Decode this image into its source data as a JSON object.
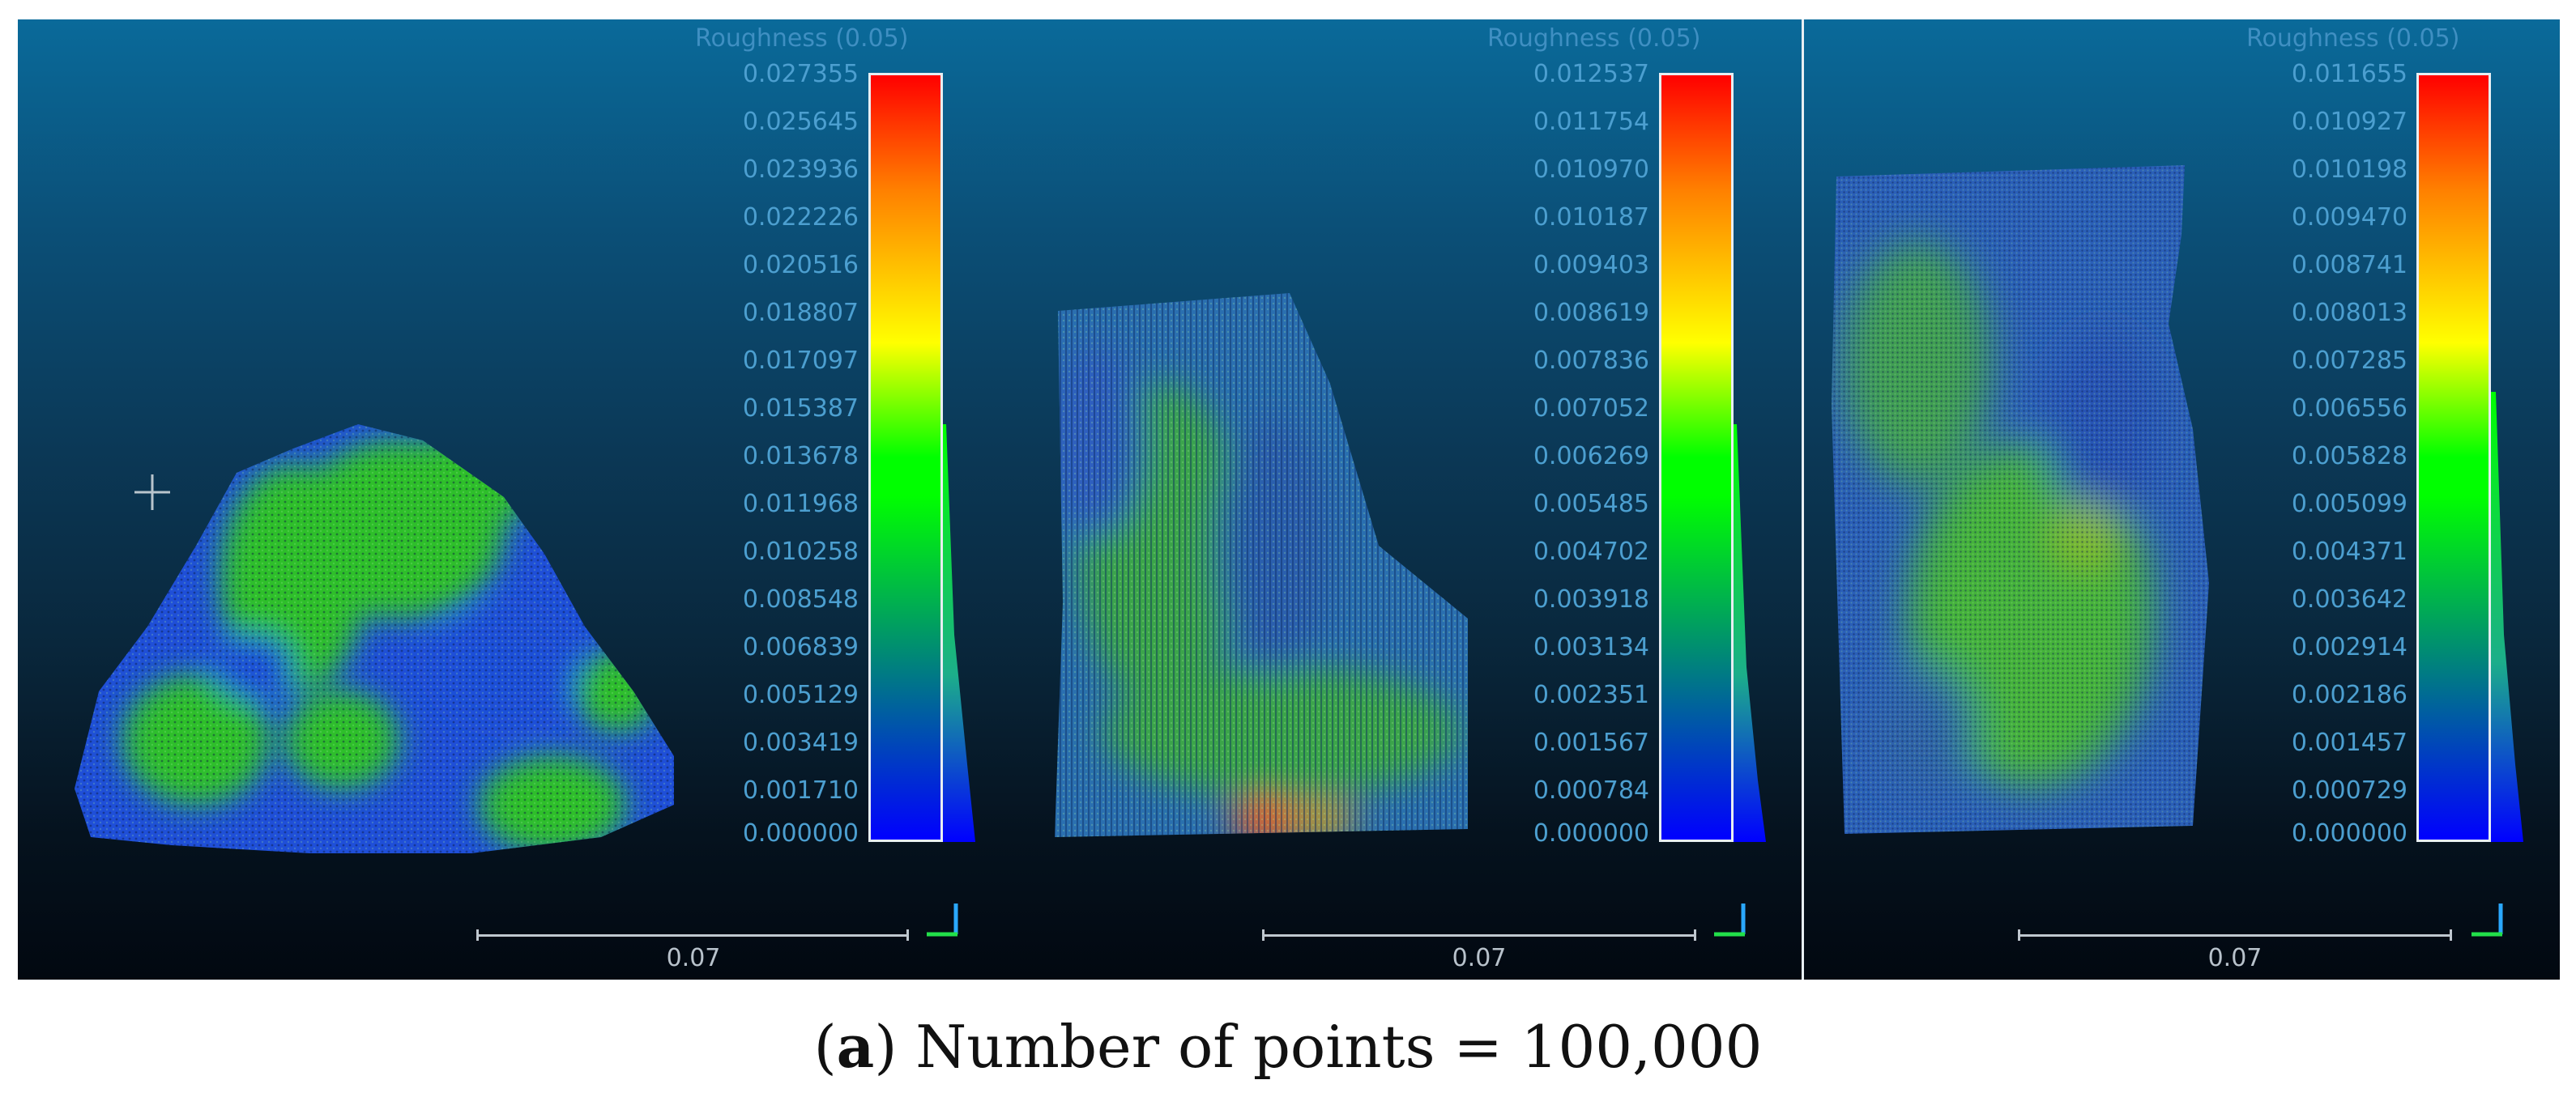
{
  "panels": [
    {
      "scalar_title": "Roughness (0.05)",
      "ticks": [
        "0.027355",
        "0.025645",
        "0.023936",
        "0.022226",
        "0.020516",
        "0.018807",
        "0.017097",
        "0.015387",
        "0.013678",
        "0.011968",
        "0.010258",
        "0.008548",
        "0.006839",
        "0.005129",
        "0.003419",
        "0.001710",
        "0.000000"
      ],
      "scale_label": "0.07"
    },
    {
      "scalar_title": "Roughness (0.05)",
      "ticks": [
        "0.012537",
        "0.011754",
        "0.010970",
        "0.010187",
        "0.009403",
        "0.008619",
        "0.007836",
        "0.007052",
        "0.006269",
        "0.005485",
        "0.004702",
        "0.003918",
        "0.003134",
        "0.002351",
        "0.001567",
        "0.000784",
        "0.000000"
      ],
      "scale_label": "0.07"
    },
    {
      "scalar_title": "Roughness (0.05)",
      "ticks": [
        "0.011655",
        "0.010927",
        "0.010198",
        "0.009470",
        "0.008741",
        "0.008013",
        "0.007285",
        "0.006556",
        "0.005828",
        "0.005099",
        "0.004371",
        "0.003642",
        "0.002914",
        "0.002186",
        "0.001457",
        "0.000729",
        "0.000000"
      ],
      "scale_label": "0.07"
    }
  ],
  "caption": {
    "letter": "a",
    "text": " Number of points = 100,000"
  },
  "colors": {
    "background_top": "#0a6a9a",
    "background_bottom": "#020810",
    "tick_text": "#4c9fd0",
    "point_blue": "#1f4fd8",
    "point_green": "#2fbf2a"
  },
  "icons": [
    "crosshair-icon",
    "axis-triad-icon"
  ]
}
